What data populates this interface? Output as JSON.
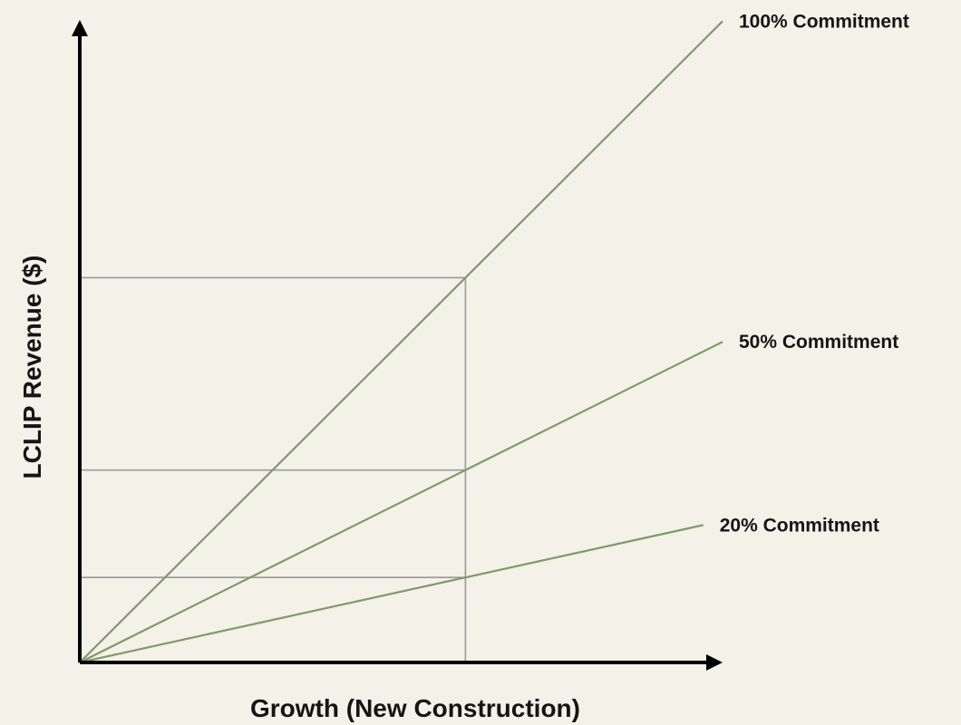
{
  "chart_data": {
    "type": "line",
    "title": "",
    "xlabel": "Growth (New Construction)",
    "ylabel": "LCLIP Revenue ($)",
    "ticks": "none",
    "grid": false,
    "legend": "none",
    "xlim": [
      0,
      100
    ],
    "ylim": [
      0,
      100
    ],
    "reference_x": 60,
    "reference_lines": "horizontal and vertical guide lines at the reference growth level",
    "series": [
      {
        "name": "100% Commitment",
        "x": [
          0,
          100
        ],
        "y": [
          0,
          98
        ],
        "label": "100% Commitment"
      },
      {
        "name": "50% Commitment",
        "x": [
          0,
          100
        ],
        "y": [
          0,
          49
        ],
        "label": "50% Commitment"
      },
      {
        "name": "20% Commitment",
        "x": [
          0,
          97
        ],
        "y": [
          0,
          21
        ],
        "label": "20% Commitment"
      }
    ]
  },
  "colors": {
    "background": "#f3f1e8",
    "series": "#7f9a6a",
    "reference": "#9a9a9a",
    "axis": "#000000"
  }
}
